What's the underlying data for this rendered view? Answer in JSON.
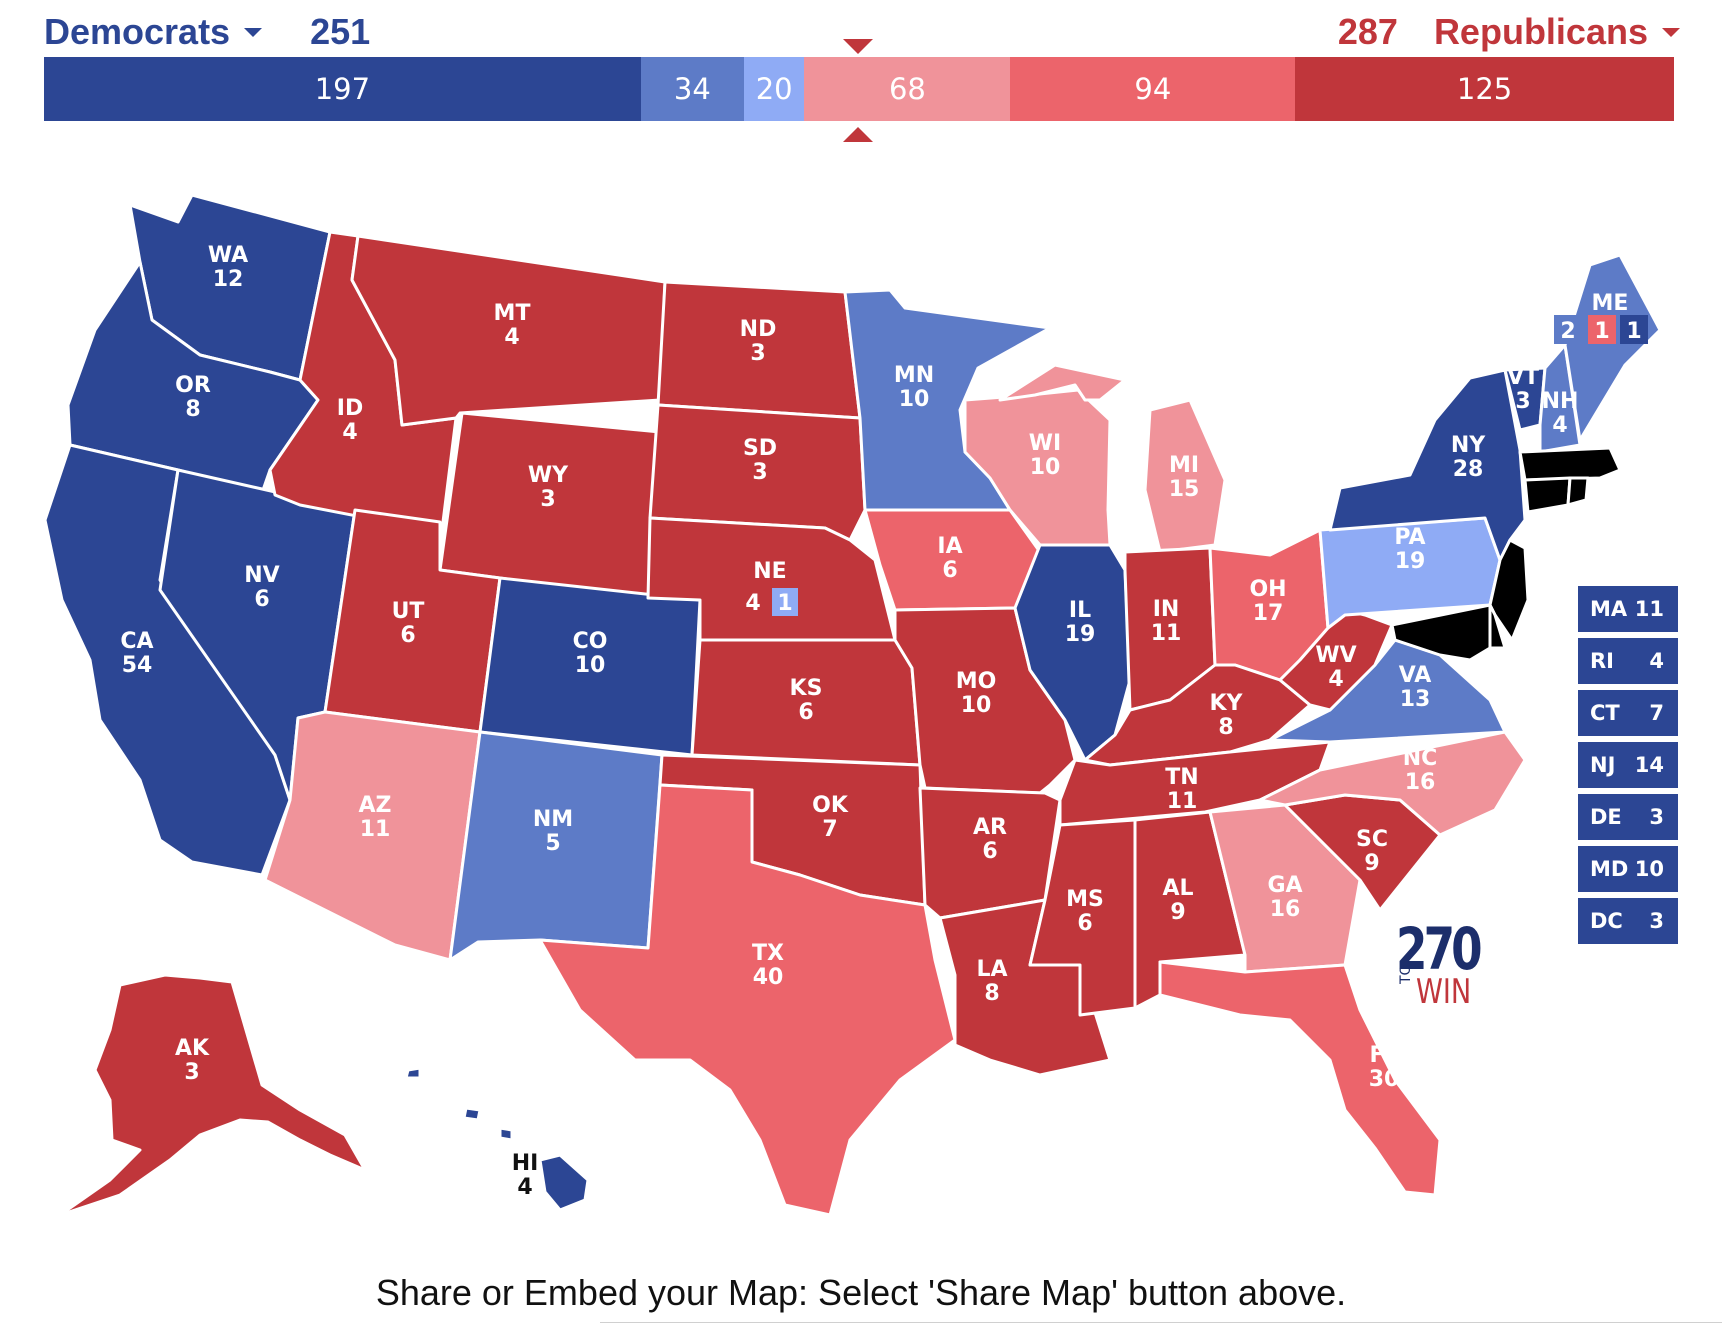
{
  "header": {
    "dem_label": "Democrats",
    "dem_total": "251",
    "rep_label": "Republicans",
    "rep_total": "287"
  },
  "colors": {
    "safe_dem": "#2c4694",
    "likely_dem": "#5d7bc7",
    "lean_dem": "#8fabf5",
    "lean_rep": "#f0939a",
    "likely_rep": "#ec646b",
    "safe_rep": "#c0363b"
  },
  "bar": [
    {
      "label": "197",
      "value": 197,
      "category": "safe_dem"
    },
    {
      "label": "34",
      "value": 34,
      "category": "likely_dem"
    },
    {
      "label": "20",
      "value": 20,
      "category": "lean_dem"
    },
    {
      "label": "68",
      "value": 68,
      "category": "lean_rep"
    },
    {
      "label": "94",
      "value": 94,
      "category": "likely_rep"
    },
    {
      "label": "125",
      "value": 125,
      "category": "safe_rep"
    }
  ],
  "states": {
    "WA": {
      "abbr": "WA",
      "votes": "12",
      "category": "safe_dem"
    },
    "OR": {
      "abbr": "OR",
      "votes": "8",
      "category": "safe_dem"
    },
    "CA": {
      "abbr": "CA",
      "votes": "54",
      "category": "safe_dem"
    },
    "NV": {
      "abbr": "NV",
      "votes": "6",
      "category": "safe_dem"
    },
    "ID": {
      "abbr": "ID",
      "votes": "4",
      "category": "safe_rep"
    },
    "MT": {
      "abbr": "MT",
      "votes": "4",
      "category": "safe_rep"
    },
    "WY": {
      "abbr": "WY",
      "votes": "3",
      "category": "safe_rep"
    },
    "UT": {
      "abbr": "UT",
      "votes": "6",
      "category": "safe_rep"
    },
    "AZ": {
      "abbr": "AZ",
      "votes": "11",
      "category": "lean_rep"
    },
    "CO": {
      "abbr": "CO",
      "votes": "10",
      "category": "safe_dem"
    },
    "NM": {
      "abbr": "NM",
      "votes": "5",
      "category": "likely_dem"
    },
    "ND": {
      "abbr": "ND",
      "votes": "3",
      "category": "safe_rep"
    },
    "SD": {
      "abbr": "SD",
      "votes": "3",
      "category": "safe_rep"
    },
    "NE": {
      "abbr": "NE",
      "votes": "4",
      "category": "safe_rep",
      "district_votes": "1",
      "district_category": "lean_dem"
    },
    "KS": {
      "abbr": "KS",
      "votes": "6",
      "category": "safe_rep"
    },
    "OK": {
      "abbr": "OK",
      "votes": "7",
      "category": "safe_rep"
    },
    "TX": {
      "abbr": "TX",
      "votes": "40",
      "category": "likely_rep"
    },
    "MN": {
      "abbr": "MN",
      "votes": "10",
      "category": "likely_dem"
    },
    "IA": {
      "abbr": "IA",
      "votes": "6",
      "category": "likely_rep"
    },
    "MO": {
      "abbr": "MO",
      "votes": "10",
      "category": "safe_rep"
    },
    "AR": {
      "abbr": "AR",
      "votes": "6",
      "category": "safe_rep"
    },
    "LA": {
      "abbr": "LA",
      "votes": "8",
      "category": "safe_rep"
    },
    "WI": {
      "abbr": "WI",
      "votes": "10",
      "category": "lean_rep"
    },
    "IL": {
      "abbr": "IL",
      "votes": "19",
      "category": "safe_dem"
    },
    "MI": {
      "abbr": "MI",
      "votes": "15",
      "category": "lean_rep"
    },
    "IN": {
      "abbr": "IN",
      "votes": "11",
      "category": "safe_rep"
    },
    "OH": {
      "abbr": "OH",
      "votes": "17",
      "category": "likely_rep"
    },
    "KY": {
      "abbr": "KY",
      "votes": "8",
      "category": "safe_rep"
    },
    "TN": {
      "abbr": "TN",
      "votes": "11",
      "category": "safe_rep"
    },
    "MS": {
      "abbr": "MS",
      "votes": "6",
      "category": "safe_rep"
    },
    "AL": {
      "abbr": "AL",
      "votes": "9",
      "category": "safe_rep"
    },
    "GA": {
      "abbr": "GA",
      "votes": "16",
      "category": "lean_rep"
    },
    "FL": {
      "abbr": "FL",
      "votes": "30",
      "category": "likely_rep"
    },
    "SC": {
      "abbr": "SC",
      "votes": "9",
      "category": "safe_rep"
    },
    "NC": {
      "abbr": "NC",
      "votes": "16",
      "category": "lean_rep"
    },
    "VA": {
      "abbr": "VA",
      "votes": "13",
      "category": "likely_dem"
    },
    "WV": {
      "abbr": "WV",
      "votes": "4",
      "category": "safe_rep"
    },
    "PA": {
      "abbr": "PA",
      "votes": "19",
      "category": "lean_dem"
    },
    "NY": {
      "abbr": "NY",
      "votes": "28",
      "category": "safe_dem"
    },
    "VT": {
      "abbr": "VT",
      "votes": "3",
      "category": "safe_dem"
    },
    "NH": {
      "abbr": "NH",
      "votes": "4",
      "category": "likely_dem"
    },
    "ME": {
      "abbr": "ME",
      "votes": "2",
      "category": "likely_dem",
      "district1_votes": "1",
      "district1_category": "likely_rep",
      "district2_votes": "1",
      "district2_category": "safe_dem"
    },
    "AK": {
      "abbr": "AK",
      "votes": "3",
      "category": "safe_rep"
    },
    "HI": {
      "abbr": "HI",
      "votes": "4",
      "category": "safe_dem"
    }
  },
  "small_states": [
    {
      "abbr": "MA",
      "votes": "11"
    },
    {
      "abbr": "RI",
      "votes": "4"
    },
    {
      "abbr": "CT",
      "votes": "7"
    },
    {
      "abbr": "NJ",
      "votes": "14"
    },
    {
      "abbr": "DE",
      "votes": "3"
    },
    {
      "abbr": "MD",
      "votes": "10"
    },
    {
      "abbr": "DC",
      "votes": "3"
    }
  ],
  "logo": {
    "number": "270",
    "to": "TO",
    "win": "WIN"
  },
  "caption": "Share or Embed your Map: Select 'Share Map' button above."
}
